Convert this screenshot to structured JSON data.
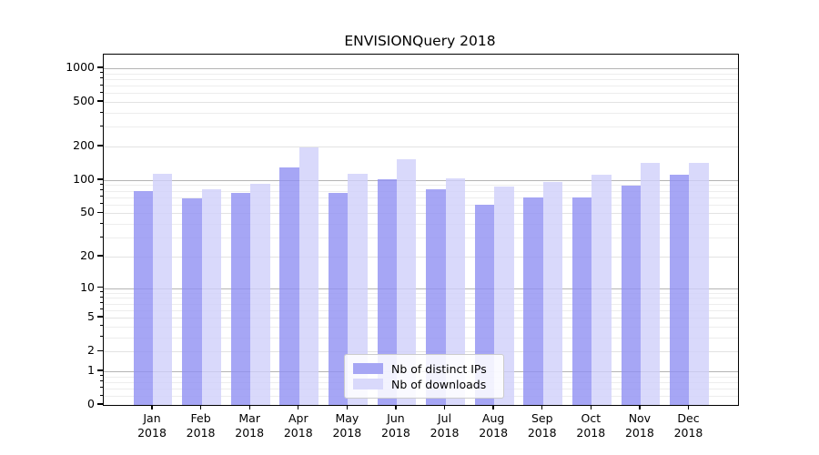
{
  "title": "ENVISIONQuery 2018",
  "chart_data": {
    "type": "bar",
    "title": "ENVISIONQuery 2018",
    "categories": [
      "Jan 2018",
      "Feb 2018",
      "Mar 2018",
      "Apr 2018",
      "May 2018",
      "Jun 2018",
      "Jul 2018",
      "Aug 2018",
      "Sep 2018",
      "Oct 2018",
      "Nov 2018",
      "Dec 2018"
    ],
    "series": [
      {
        "name": "Nb of distinct IPs",
        "color": "#a6a6f4",
        "fill_rgba": "rgba(144,144,242,0.8)",
        "values": [
          80,
          69,
          77,
          130,
          76,
          102,
          82,
          60,
          70,
          70,
          89,
          112
        ]
      },
      {
        "name": "Nb of downloads",
        "color": "#d9d9fb",
        "fill_rgba": "rgba(208,208,250,0.8)",
        "values": [
          114,
          83,
          92,
          196,
          114,
          154,
          104,
          87,
          96,
          112,
          144,
          142
        ]
      }
    ],
    "xlabel": "",
    "ylabel": "",
    "yscale": "log1p",
    "yticks": [
      1000,
      500,
      200,
      100,
      50,
      20,
      10,
      5,
      2,
      1,
      0
    ],
    "ytick_decades": [
      1,
      10,
      100,
      1000
    ],
    "yminor_ticks": [
      0.2,
      0.4,
      0.6,
      0.8,
      3,
      4,
      6,
      7,
      8,
      9,
      30,
      40,
      60,
      70,
      80,
      90,
      300,
      400,
      600,
      700,
      800,
      900
    ],
    "ylim": [
      0,
      1320
    ],
    "grid": true,
    "legend_position": "lower center"
  },
  "colors": {
    "background": "#ffffff",
    "frame": "#000000",
    "grid_major": "#b4b4b4",
    "grid_minor": "#ededed",
    "legend_border": "#cccccc"
  }
}
